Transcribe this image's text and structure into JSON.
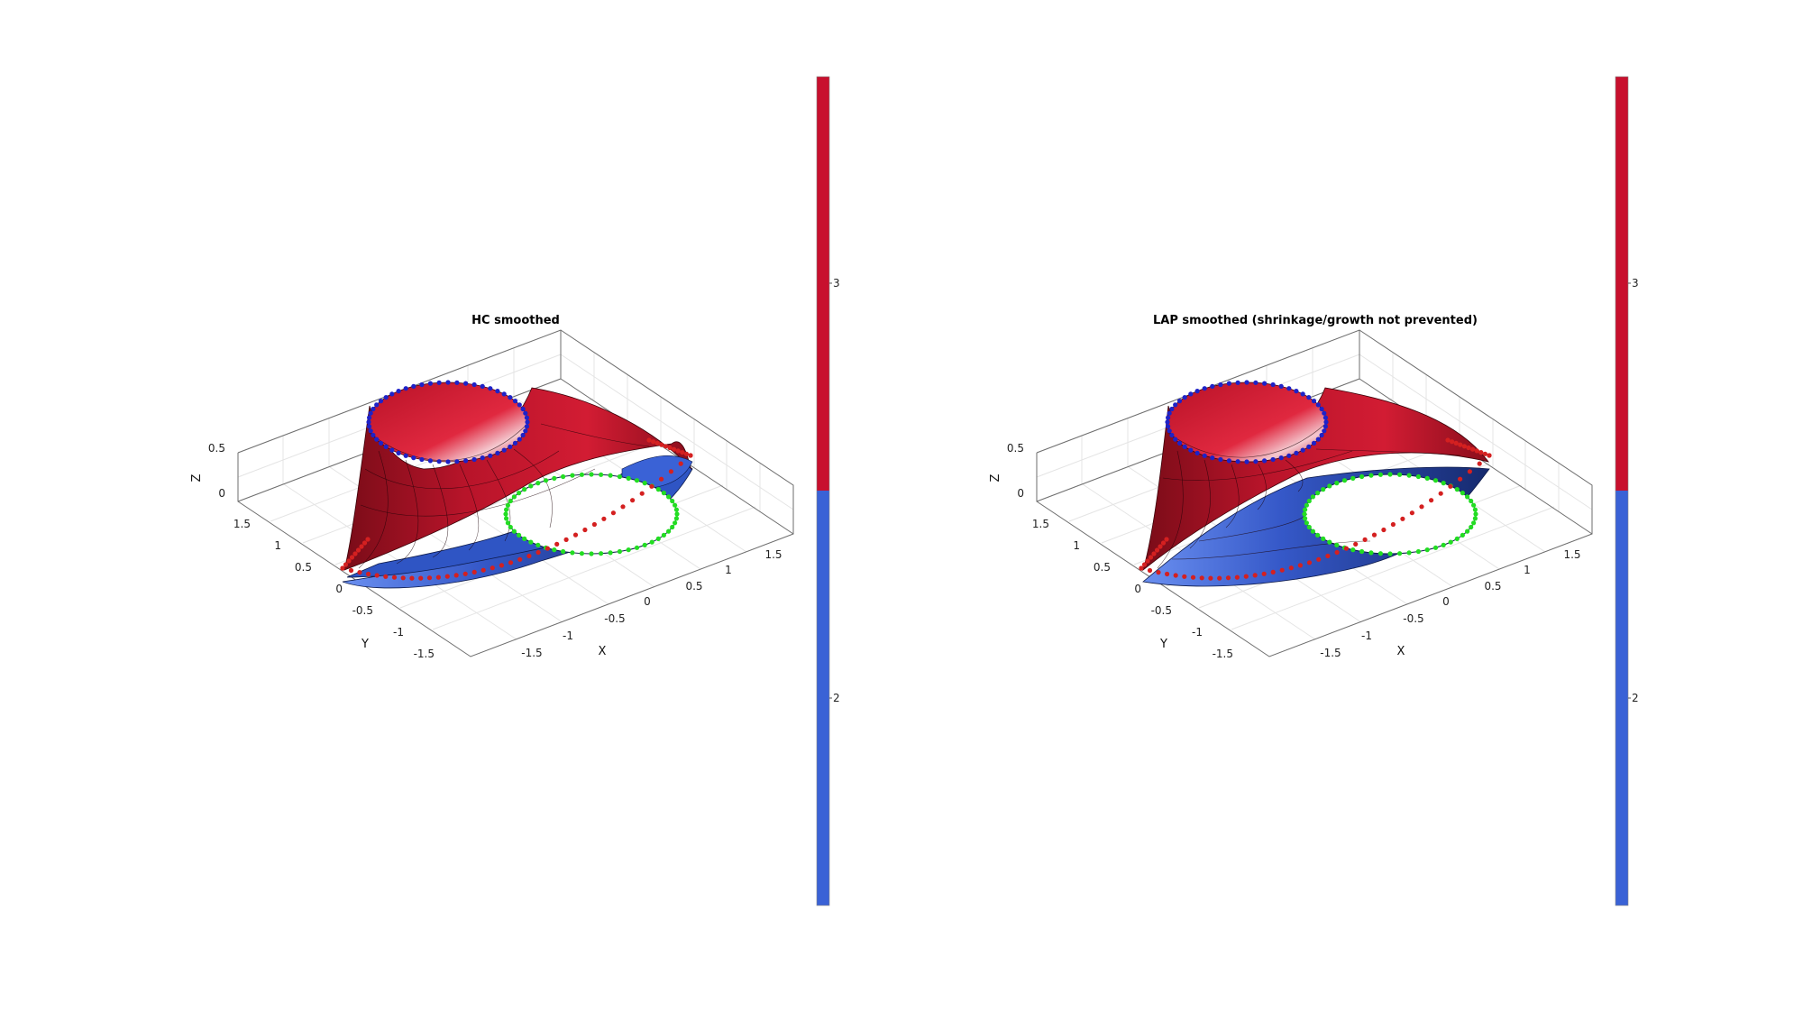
{
  "chart_data": [
    {
      "type": "surface",
      "title": "HC smoothed",
      "xlabel": "X",
      "ylabel": "Y",
      "zlabel": "Z",
      "xticks": [
        "-1.5",
        "-1",
        "-0.5",
        "0",
        "0.5",
        "1",
        "1.5"
      ],
      "yticks": [
        "-1.5",
        "-1",
        "-0.5",
        "0",
        "0.5",
        "1",
        "1.5"
      ],
      "zticks": [
        "0",
        "0.5"
      ],
      "colorbar": {
        "ticks": [
          "2",
          "3"
        ],
        "colors": {
          "2": "#3a62d6",
          "3": "#c8102e"
        }
      },
      "boundary_colors": {
        "top_circle": "#1e22c8",
        "hole_circle": "#22dd22",
        "outer_edge": "#d42020"
      }
    },
    {
      "type": "surface",
      "title": "LAP smoothed (shrinkage/growth not prevented)",
      "xlabel": "X",
      "ylabel": "Y",
      "zlabel": "Z",
      "xticks": [
        "-1.5",
        "-1",
        "-0.5",
        "0",
        "0.5",
        "1",
        "1.5"
      ],
      "yticks": [
        "-1.5",
        "-1",
        "-0.5",
        "0",
        "0.5",
        "1",
        "1.5"
      ],
      "zticks": [
        "0",
        "0.5"
      ],
      "colorbar": {
        "ticks": [
          "2",
          "3"
        ],
        "colors": {
          "2": "#3a62d6",
          "3": "#c8102e"
        }
      },
      "boundary_colors": {
        "top_circle": "#1e22c8",
        "hole_circle": "#22dd22",
        "outer_edge": "#d42020"
      }
    }
  ]
}
